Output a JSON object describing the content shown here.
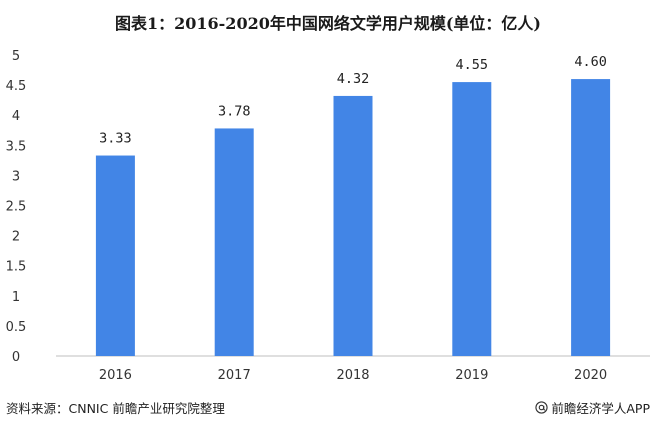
{
  "chart_data": {
    "type": "bar",
    "title": "图表1：2016-2020年中国网络文学用户规模(单位：亿人)",
    "categories": [
      "2016",
      "2017",
      "2018",
      "2019",
      "2020"
    ],
    "values": [
      3.33,
      3.78,
      4.32,
      4.55,
      4.6
    ],
    "value_labels": [
      "3.33",
      "3.78",
      "4.32",
      "4.55",
      "4.60"
    ],
    "yticks": [
      0,
      0.5,
      1,
      1.5,
      2,
      2.5,
      3,
      3.5,
      4,
      4.5,
      5
    ],
    "ytick_labels": [
      "0",
      "0.5",
      "1",
      "1.5",
      "2",
      "2.5",
      "3",
      "3.5",
      "4",
      "4.5",
      "5"
    ],
    "ylim": [
      0,
      5
    ],
    "xlabel": "",
    "ylabel": "",
    "grid": false,
    "bar_color": "#4285e6"
  },
  "footer": {
    "source": "资料来源：CNNIC 前瞻产业研究院整理",
    "brand_icon": "at-icon",
    "brand": "前瞻经济学人APP"
  }
}
